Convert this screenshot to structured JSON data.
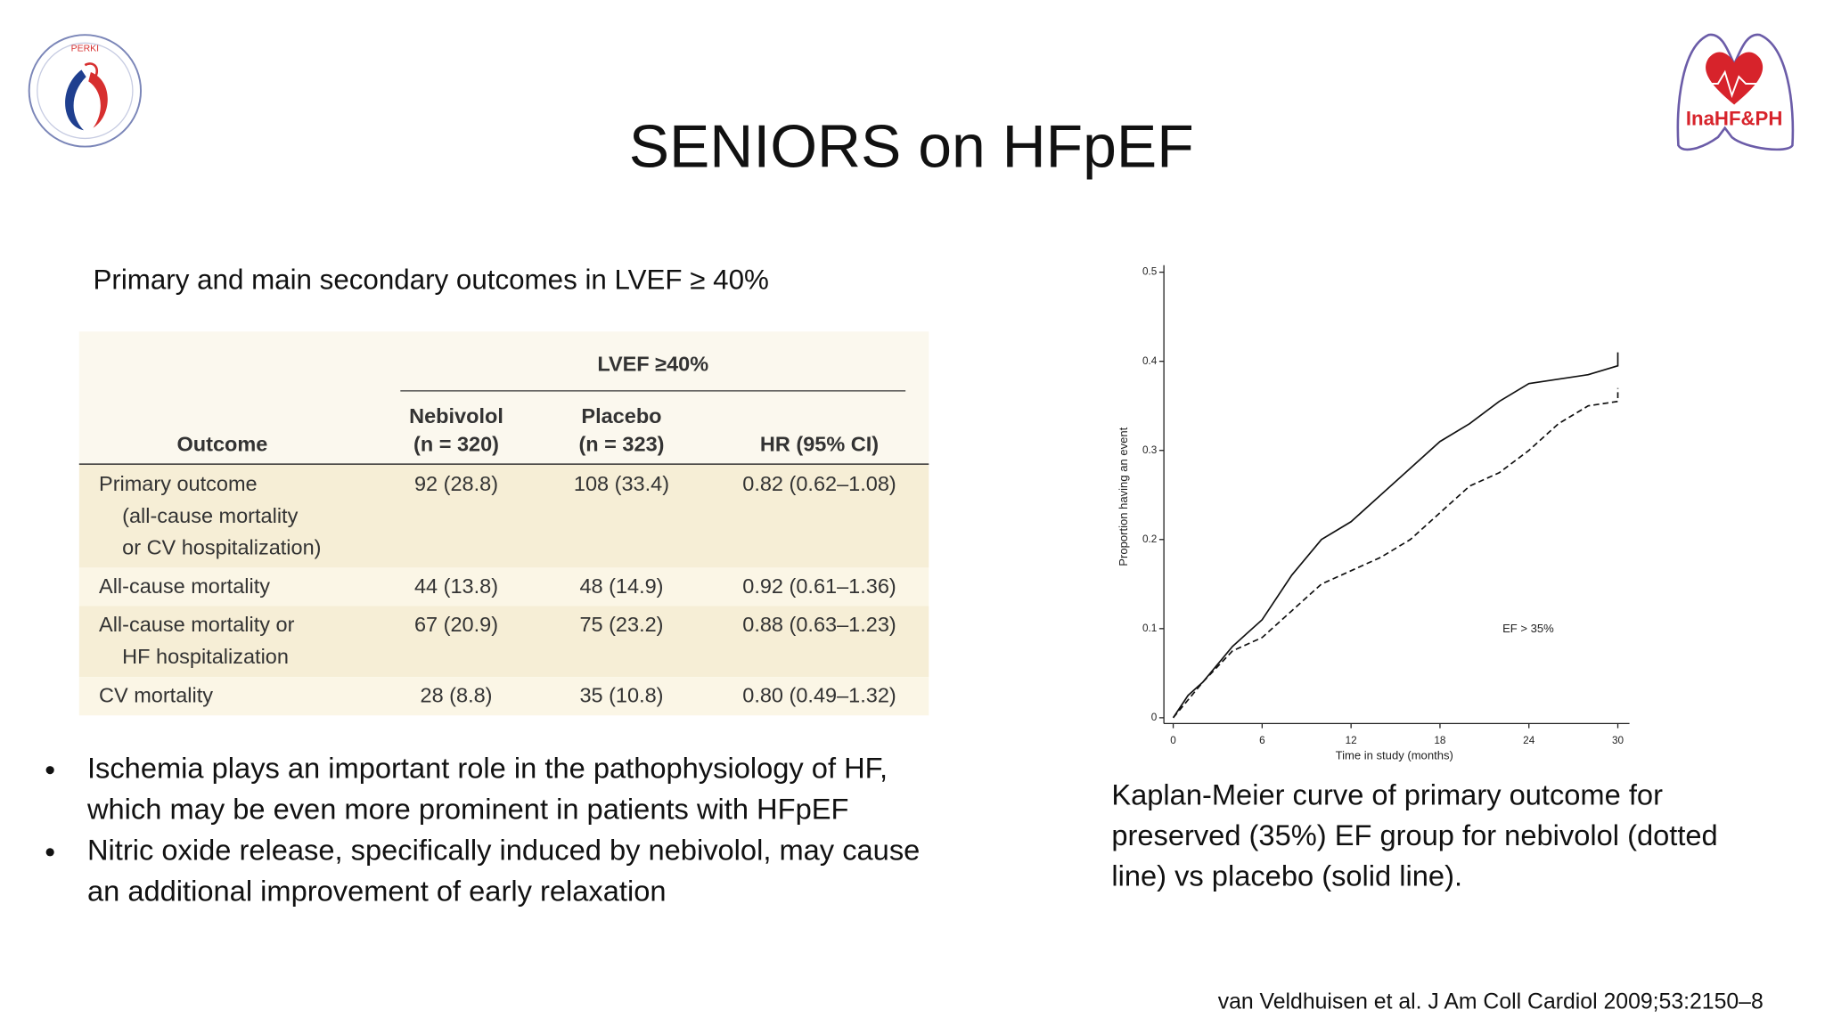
{
  "title": "SENIORS on HFpEF",
  "subtitle": "Primary and main secondary outcomes in LVEF ≥ 40%",
  "logos": {
    "left": "PERKI",
    "right": "InaHF&PH"
  },
  "table": {
    "group_header": "LVEF ≥40%",
    "columns": [
      [
        "Outcome"
      ],
      [
        "Nebivolol",
        "(n = 320)"
      ],
      [
        "Placebo",
        "(n = 323)"
      ],
      [
        "HR (95% CI)"
      ]
    ],
    "rows": [
      [
        [
          "Primary outcome",
          "(all-cause mortality",
          "or CV hospitalization)"
        ],
        "92 (28.8)",
        "108 (33.4)",
        "0.82 (0.62–1.08)"
      ],
      [
        [
          "All-cause mortality"
        ],
        "44 (13.8)",
        "48 (14.9)",
        "0.92 (0.61–1.36)"
      ],
      [
        [
          "All-cause mortality or",
          "HF hospitalization"
        ],
        "67 (20.9)",
        "75 (23.2)",
        "0.88 (0.63–1.23)"
      ],
      [
        [
          "CV mortality"
        ],
        "28 (8.8)",
        "35 (10.8)",
        "0.80 (0.49–1.32)"
      ]
    ]
  },
  "bullets": [
    [
      "Ischemia plays an important role in the pathophysiology of HF,",
      "which may be even more prominent in patients with HFpEF"
    ],
    [
      "Nitric oxide release, specifically induced by nebivolol, may cause",
      "an additional improvement of early relaxation"
    ]
  ],
  "caption": [
    "Kaplan-Meier curve of primary outcome for",
    "preserved (35%) EF group for nebivolol (dotted",
    "line) vs placebo (solid line)."
  ],
  "citation": "van Veldhuisen et al. J Am Coll Cardiol 2009;53:2150–8",
  "chart_data": {
    "type": "line",
    "x_label": "Time in study (months)",
    "y_label": "Proportion having an event",
    "annotation": "EF > 35%",
    "x": [
      0,
      1,
      2,
      4,
      6,
      8,
      10,
      12,
      14,
      16,
      18,
      20,
      22,
      24,
      26,
      28,
      30,
      30
    ],
    "series": [
      {
        "color": "#111111",
        "dashed": false,
        "values": [
          0,
          0.025,
          0.04,
          0.08,
          0.11,
          0.16,
          0.2,
          0.22,
          0.25,
          0.28,
          0.31,
          0.33,
          0.355,
          0.375,
          0.38,
          0.385,
          0.395,
          0.41
        ]
      },
      {
        "color": "#111111",
        "dashed": true,
        "values": [
          0,
          0.02,
          0.04,
          0.075,
          0.09,
          0.12,
          0.15,
          0.165,
          0.18,
          0.2,
          0.23,
          0.26,
          0.275,
          0.3,
          0.33,
          0.35,
          0.355,
          0.37
        ]
      }
    ],
    "xlim": [
      0,
      30
    ],
    "xticks": [
      0,
      6,
      12,
      18,
      24,
      30
    ],
    "ylim": [
      0,
      0.5
    ],
    "yticks": [
      0,
      0.1,
      0.2,
      0.3,
      0.4,
      0.5
    ]
  }
}
